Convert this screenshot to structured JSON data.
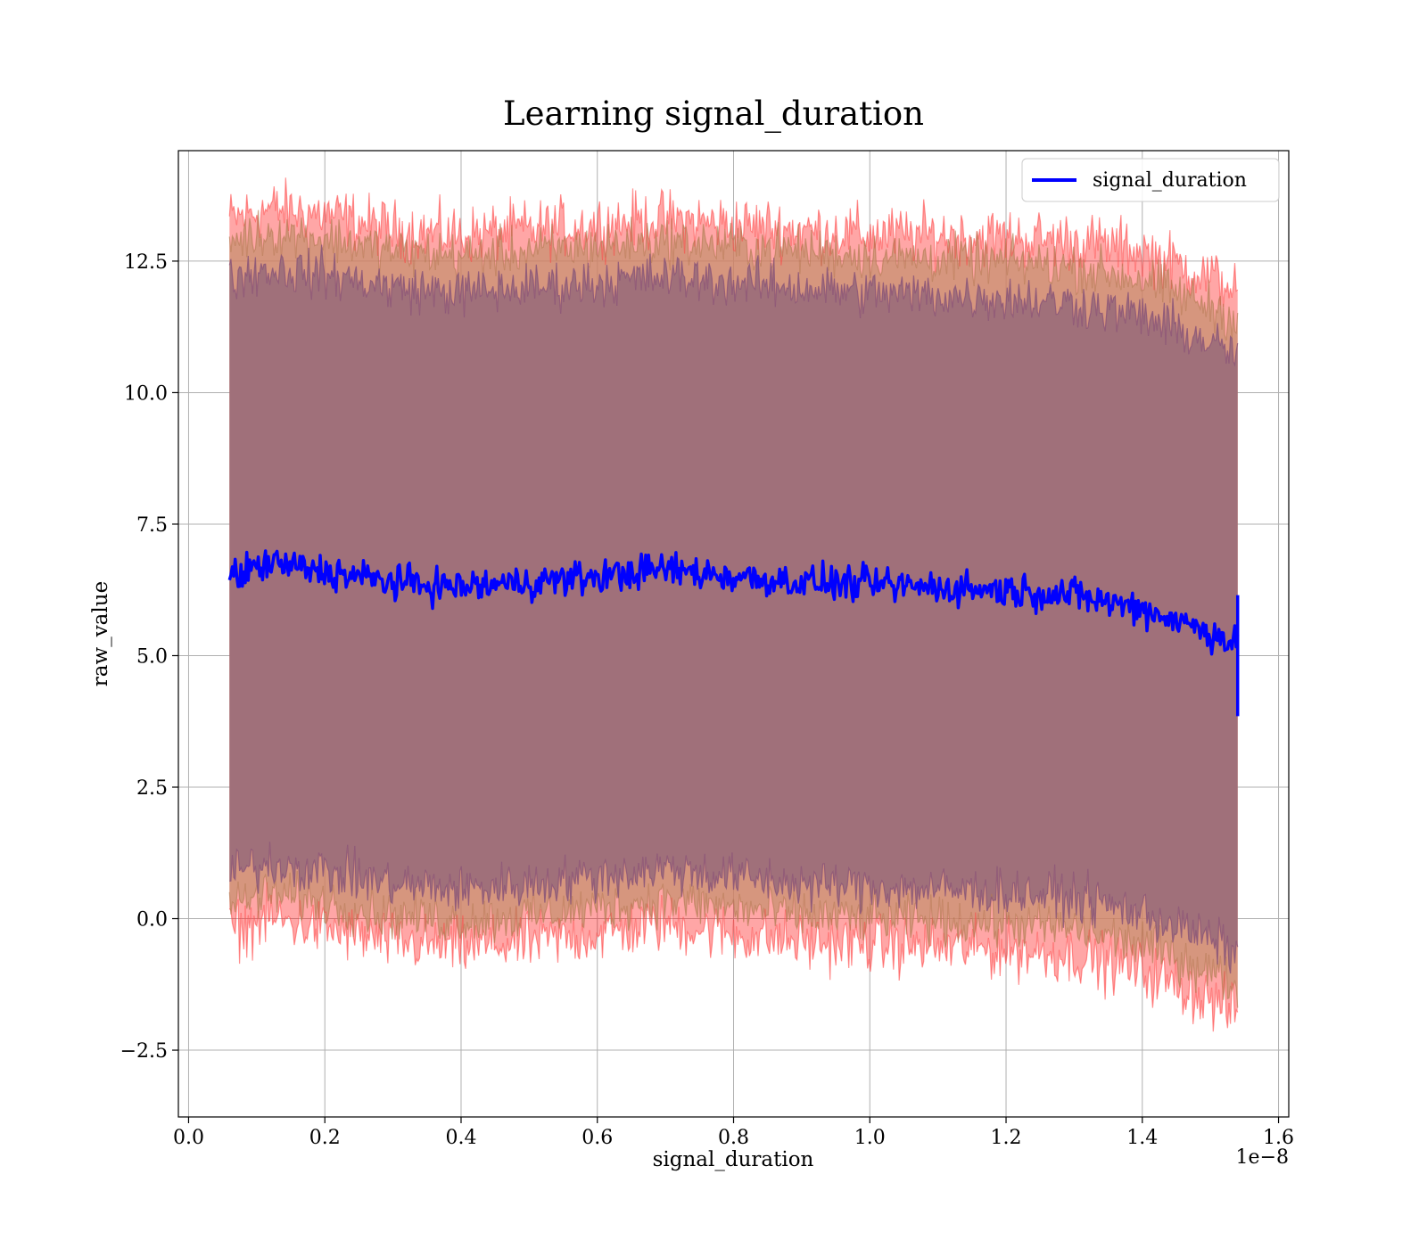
{
  "chart_data": {
    "type": "line",
    "title": "Learning signal_duration",
    "xlabel": "signal_duration",
    "ylabel": "raw_value",
    "x_offset_label": "1e−8",
    "xlim": [
      -0.015,
      1.615
    ],
    "ylim": [
      -3.77,
      14.6
    ],
    "x_ticks": [
      0.0,
      0.2,
      0.4,
      0.6,
      0.8,
      1.0,
      1.2,
      1.4,
      1.6
    ],
    "x_tick_labels": [
      "0.0",
      "0.2",
      "0.4",
      "0.6",
      "0.8",
      "1.0",
      "1.2",
      "1.4",
      "1.6"
    ],
    "y_ticks": [
      -2.5,
      0.0,
      2.5,
      5.0,
      7.5,
      10.0,
      12.5
    ],
    "y_tick_labels": [
      "−2.5",
      "0.0",
      "2.5",
      "5.0",
      "7.5",
      "10.0",
      "12.5"
    ],
    "grid": true,
    "legend_position": "top-right",
    "colors": {
      "mean_line": "#0000ff",
      "band_fill": "#a0707a",
      "outer_band": "#ff0000",
      "mid_band": "#c89070",
      "inner_band": "#8a5478",
      "grid": "#b0b0b0"
    },
    "series": [
      {
        "name": "signal_duration",
        "x": [
          0.06,
          0.12,
          0.2,
          0.3,
          0.4,
          0.5,
          0.6,
          0.7,
          0.8,
          0.9,
          1.0,
          1.1,
          1.2,
          1.3,
          1.4,
          1.5,
          1.54
        ],
        "values": [
          6.5,
          6.75,
          6.6,
          6.4,
          6.3,
          6.4,
          6.5,
          6.65,
          6.5,
          6.4,
          6.35,
          6.3,
          6.25,
          6.15,
          5.9,
          5.45,
          5.2
        ]
      }
    ],
    "bands": {
      "x": [
        0.06,
        0.12,
        0.2,
        0.3,
        0.4,
        0.5,
        0.6,
        0.7,
        0.8,
        0.9,
        1.0,
        1.1,
        1.2,
        1.3,
        1.4,
        1.5,
        1.54
      ],
      "outer_upper": [
        13.3,
        13.5,
        13.4,
        13.1,
        13.0,
        13.1,
        13.2,
        13.3,
        13.2,
        13.1,
        13.0,
        13.0,
        12.95,
        12.9,
        12.7,
        12.2,
        12.0
      ],
      "outer_lower": [
        -0.25,
        0.0,
        -0.2,
        -0.45,
        -0.55,
        -0.45,
        -0.3,
        -0.1,
        -0.3,
        -0.45,
        -0.5,
        -0.55,
        -0.6,
        -0.7,
        -1.0,
        -1.55,
        -1.8
      ],
      "mid_upper": [
        12.9,
        13.05,
        12.95,
        12.7,
        12.6,
        12.7,
        12.8,
        12.9,
        12.8,
        12.7,
        12.6,
        12.55,
        12.5,
        12.4,
        12.15,
        11.65,
        11.4
      ],
      "mid_lower": [
        0.25,
        0.45,
        0.3,
        0.05,
        -0.05,
        0.05,
        0.2,
        0.35,
        0.2,
        0.05,
        0.0,
        -0.05,
        -0.1,
        -0.2,
        -0.5,
        -1.0,
        -1.3
      ],
      "inner_upper": [
        12.2,
        12.35,
        12.25,
        12.0,
        11.9,
        12.0,
        12.1,
        12.2,
        12.1,
        12.0,
        11.9,
        11.85,
        11.8,
        11.7,
        11.45,
        10.95,
        10.7
      ],
      "inner_lower": [
        0.85,
        1.05,
        0.9,
        0.65,
        0.55,
        0.65,
        0.8,
        0.95,
        0.8,
        0.65,
        0.6,
        0.55,
        0.5,
        0.4,
        0.1,
        -0.4,
        -0.65
      ]
    }
  }
}
